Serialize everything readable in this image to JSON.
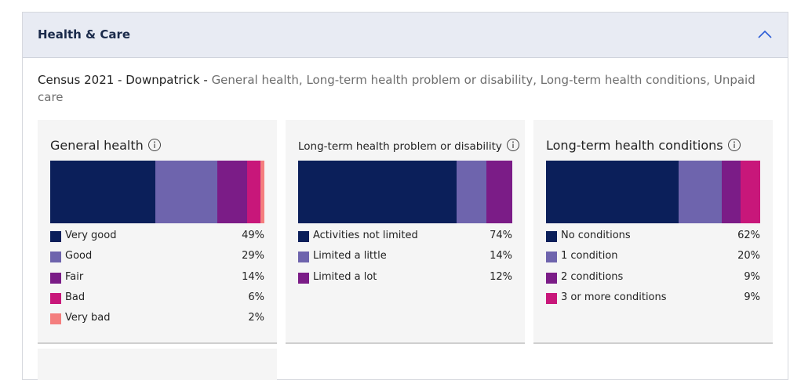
{
  "header": {
    "title": "Health & Care"
  },
  "subtitle": {
    "place": "Census 2021 - Downpatrick - ",
    "topics": "General health, Long-term health problem or disability, Long-term health conditions, Unpaid care"
  },
  "chart_data": [
    {
      "type": "stacked-bar",
      "title": "General health",
      "categories": [
        "Very good",
        "Good",
        "Fair",
        "Bad",
        "Very bad"
      ],
      "values": [
        49,
        29,
        14,
        6,
        2
      ],
      "value_labels": [
        "49%",
        "29%",
        "14%",
        "6%",
        "2%"
      ],
      "colors": [
        "#0b1f5a",
        "#6e64ad",
        "#7b1c87",
        "#c8177a",
        "#f47e7e"
      ]
    },
    {
      "type": "stacked-bar",
      "title": "Long-term health problem or disability",
      "categories": [
        "Activities not limited",
        "Limited a little",
        "Limited a lot"
      ],
      "values": [
        74,
        14,
        12
      ],
      "value_labels": [
        "74%",
        "14%",
        "12%"
      ],
      "colors": [
        "#0b1f5a",
        "#6e64ad",
        "#7b1c87"
      ]
    },
    {
      "type": "stacked-bar",
      "title": "Long-term health conditions",
      "categories": [
        "No conditions",
        "1 condition",
        "2 conditions",
        "3 or more conditions"
      ],
      "values": [
        62,
        20,
        9,
        9
      ],
      "value_labels": [
        "62%",
        "20%",
        "9%",
        "9%"
      ],
      "colors": [
        "#0b1f5a",
        "#6e64ad",
        "#7b1c87",
        "#c8177a"
      ]
    }
  ]
}
